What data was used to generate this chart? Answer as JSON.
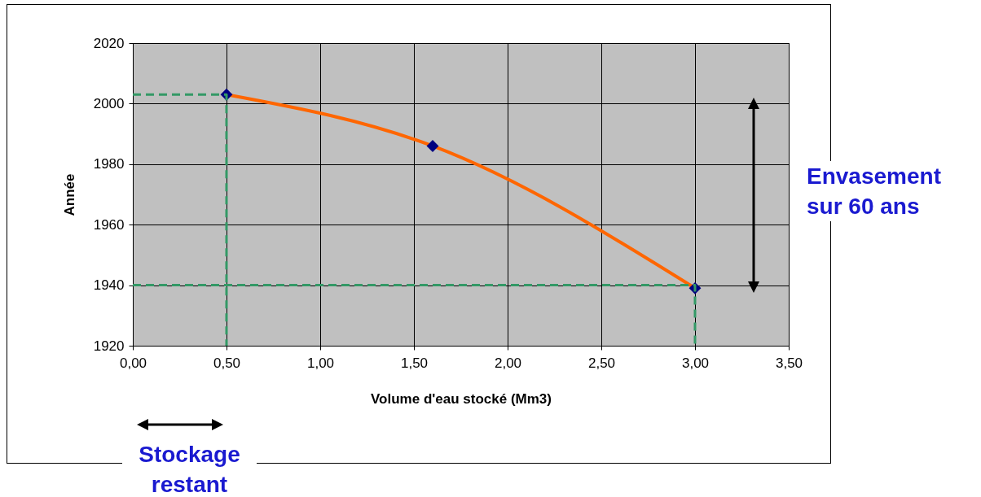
{
  "chart_data": {
    "type": "line",
    "xlabel": "Volume d'eau stocké (Mm3)",
    "ylabel": "Année",
    "xlim": [
      0,
      3.5
    ],
    "ylim": [
      1920,
      2020
    ],
    "xticks": [
      {
        "value": 0,
        "label": "0,00"
      },
      {
        "value": 0.5,
        "label": "0,50"
      },
      {
        "value": 1,
        "label": "1,00"
      },
      {
        "value": 1.5,
        "label": "1,50"
      },
      {
        "value": 2,
        "label": "2,00"
      },
      {
        "value": 2.5,
        "label": "2,50"
      },
      {
        "value": 3,
        "label": "3,00"
      },
      {
        "value": 3.5,
        "label": "3,50"
      }
    ],
    "yticks": [
      1920,
      1940,
      1960,
      1980,
      2000,
      2020
    ],
    "grid": true,
    "marker": "diamond",
    "line_style": "solid",
    "series": [
      {
        "color": "#ff6600",
        "x": [
          0.5,
          1.6,
          3
        ],
        "values": [
          2003,
          1986,
          1939
        ],
        "marker": "none"
      },
      {
        "type": "scatter",
        "color": "#000080",
        "x": [
          0.5,
          1.6,
          3
        ],
        "values": [
          2003,
          1986,
          1939
        ]
      },
      {
        "color": "#339966",
        "x": [
          0,
          0.5,
          0.5
        ],
        "values": [
          2003,
          2003,
          1920
        ],
        "line_style": "dashed",
        "marker": "none"
      },
      {
        "color": "#339966",
        "x": [
          0,
          3,
          3
        ],
        "values": [
          1940,
          1940,
          1920
        ],
        "line_style": "dashed",
        "marker": "none"
      }
    ],
    "annotations": [
      "Envasement sur 60 ans",
      "Stockage restant"
    ]
  }
}
